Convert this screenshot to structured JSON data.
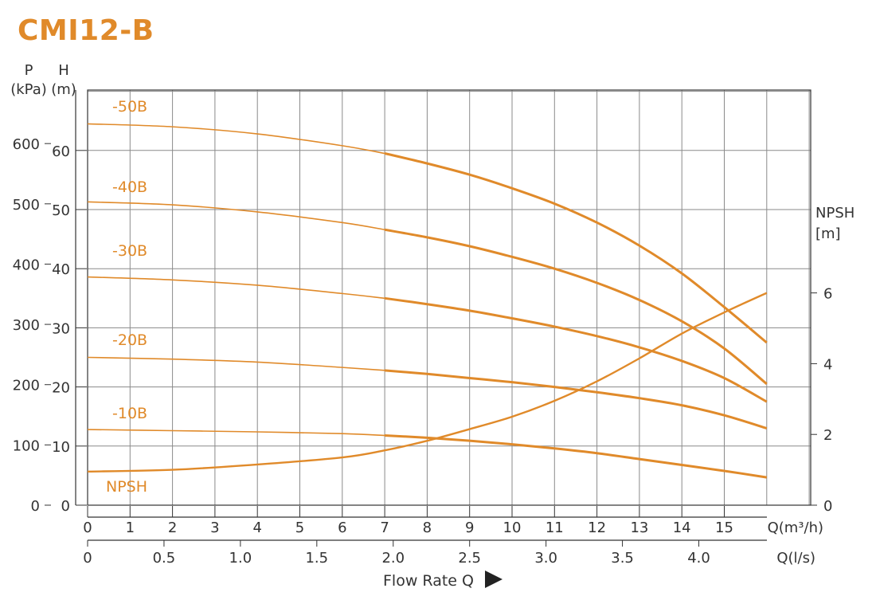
{
  "title": "CMI12-B",
  "colors": {
    "curve": "#E08A2A",
    "label": "#E08A2A",
    "grid": "#8a8a8a",
    "axis": "#333333",
    "text": "#333333"
  },
  "chart_data": {
    "type": "line",
    "title": "CMI12-B",
    "xlabel": "Flow Rate Q",
    "x_unit_primary": "Q(m³/h)",
    "x_unit_secondary": "Q(l/s)",
    "xlim": [
      0,
      16
    ],
    "x_ticks": [
      0,
      1,
      2,
      3,
      4,
      5,
      6,
      7,
      8,
      9,
      10,
      11,
      12,
      13,
      14,
      15
    ],
    "x2_ticks": [
      "0",
      "0.5",
      "1.0",
      "1.5",
      "2.0",
      "2.5",
      "3.0",
      "3.5",
      "4.0"
    ],
    "y_head": {
      "label_top": "H",
      "label_unit": "(m)",
      "lim": [
        0,
        70
      ],
      "ticks": [
        0,
        10,
        20,
        30,
        40,
        50,
        60
      ]
    },
    "y_pressure": {
      "label_top": "P",
      "label_unit": "(kPa)",
      "ticks": [
        0,
        100,
        200,
        300,
        400,
        500,
        600
      ]
    },
    "y_npsh": {
      "label_top": "NPSH",
      "label_unit": "[m]",
      "ticks": [
        0,
        2,
        4,
        6
      ]
    },
    "grid": true,
    "series": [
      {
        "name": "-50B",
        "x": [
          0,
          2,
          4,
          6,
          7,
          8,
          9,
          10,
          11,
          12,
          13,
          14,
          15,
          16
        ],
        "y": [
          64.5,
          64.0,
          62.8,
          60.8,
          59.5,
          57.8,
          55.9,
          53.6,
          51.0,
          47.8,
          43.9,
          39.2,
          33.5,
          27.5
        ],
        "thin_until": 7
      },
      {
        "name": "-40B",
        "x": [
          0,
          2,
          4,
          6,
          7,
          8,
          9,
          10,
          11,
          12,
          13,
          14,
          15,
          16
        ],
        "y": [
          51.3,
          50.8,
          49.6,
          47.8,
          46.6,
          45.3,
          43.8,
          42.0,
          40.0,
          37.6,
          34.7,
          31.1,
          26.5,
          20.5
        ],
        "thin_until": 7
      },
      {
        "name": "-30B",
        "x": [
          0,
          2,
          4,
          6,
          7,
          8,
          9,
          10,
          11,
          12,
          13,
          14,
          15,
          16
        ],
        "y": [
          38.6,
          38.1,
          37.2,
          35.8,
          35.0,
          34.0,
          32.9,
          31.6,
          30.2,
          28.6,
          26.7,
          24.4,
          21.5,
          17.5
        ],
        "thin_until": 7
      },
      {
        "name": "-20B",
        "x": [
          0,
          2,
          4,
          6,
          7,
          8,
          9,
          10,
          11,
          12,
          13,
          14,
          15,
          16
        ],
        "y": [
          25.0,
          24.7,
          24.2,
          23.3,
          22.8,
          22.2,
          21.5,
          20.8,
          20.0,
          19.1,
          18.1,
          16.9,
          15.2,
          13.0
        ],
        "thin_until": 7
      },
      {
        "name": "-10B",
        "x": [
          0,
          2,
          4,
          6,
          7,
          8,
          9,
          10,
          11,
          12,
          13,
          14,
          15,
          16
        ],
        "y": [
          12.8,
          12.6,
          12.4,
          12.1,
          11.8,
          11.4,
          10.9,
          10.3,
          9.6,
          8.8,
          7.8,
          6.8,
          5.8,
          4.7
        ],
        "thin_until": 7
      },
      {
        "name": "NPSH",
        "axis": "npsh",
        "x": [
          0,
          2,
          4,
          6,
          7,
          8,
          9,
          10,
          11,
          12,
          13,
          14,
          15,
          16
        ],
        "y": [
          0.95,
          1.0,
          1.15,
          1.35,
          1.55,
          1.82,
          2.15,
          2.5,
          2.95,
          3.5,
          4.15,
          4.85,
          5.45,
          6.0
        ]
      }
    ],
    "annotations": [
      "-50B",
      "-40B",
      "-30B",
      "-20B",
      "-10B",
      "NPSH"
    ]
  }
}
